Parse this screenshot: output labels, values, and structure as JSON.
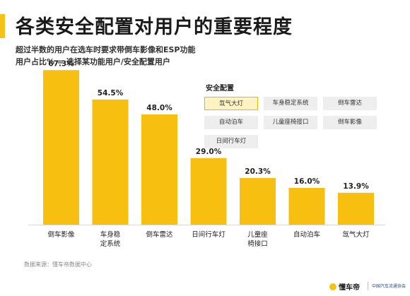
{
  "header": {
    "title": "各类安全配置对用户的重要程度",
    "subtitle": "超过半数的用户在选车时要求带倒车影像和ESP功能",
    "subtitle2": "用户占比%  =  选择某功能用户/安全配置用户"
  },
  "legend": {
    "title": "安全配置",
    "items": [
      "氙气大灯",
      "车身稳定系统",
      "倒车雷达",
      "自动泊车",
      "儿童座椅接口",
      "倒车影像",
      "日间行车灯"
    ],
    "active_index": 0
  },
  "footer": {
    "source": "数据来源：懂车帝数据中心",
    "logo_primary": "懂车帝",
    "logo_secondary": "中国汽车流通协会"
  },
  "colors": {
    "bar": "#f7bf0f",
    "accent": "#f6c218"
  },
  "chart_data": {
    "type": "bar",
    "categories": [
      [
        "倒车影像"
      ],
      [
        "车身稳",
        "定系统"
      ],
      [
        "倒车雷达"
      ],
      [
        "日间行车灯"
      ],
      [
        "儿童座",
        "椅接口"
      ],
      [
        "自动泊车"
      ],
      [
        "氙气大灯"
      ]
    ],
    "values": [
      67.3,
      54.5,
      48.0,
      29.0,
      20.3,
      16.0,
      13.9
    ],
    "value_labels": [
      "67.3%",
      "54.5%",
      "48.0%",
      "29.0%",
      "20.3%",
      "16.0%",
      "13.9%"
    ],
    "ylim": [
      0,
      80
    ],
    "grid": false
  }
}
